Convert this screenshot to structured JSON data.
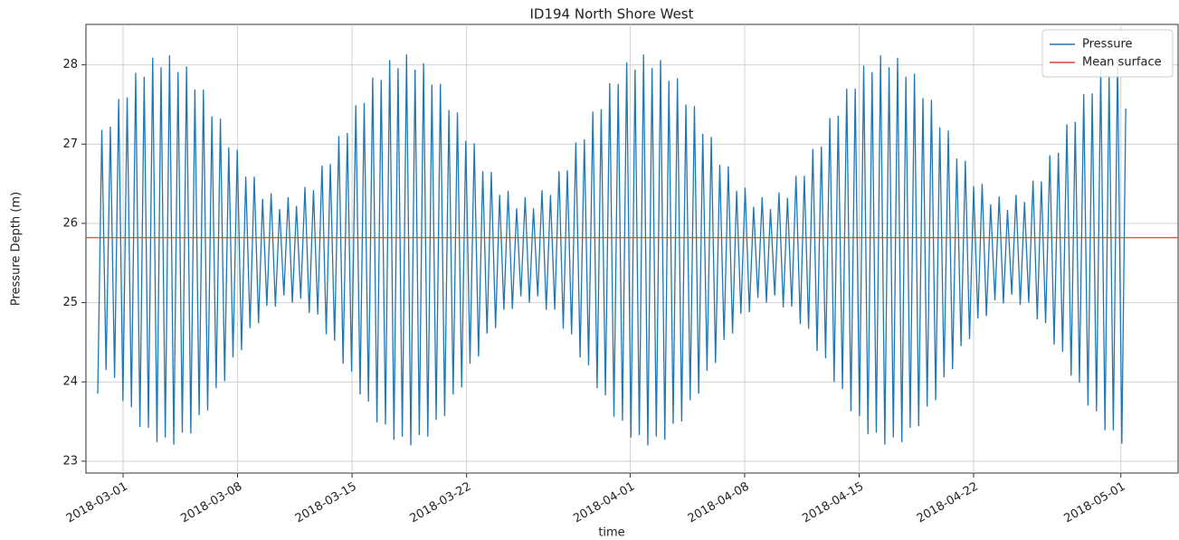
{
  "chart_data": {
    "type": "line",
    "title": "ID194 North Shore West",
    "xlabel": "time",
    "ylabel": "Pressure Depth (m)",
    "xlim": [
      -2.27,
      64.5
    ],
    "ylim": [
      22.85,
      28.51
    ],
    "xticks": [
      {
        "value": 0,
        "label": "2018-03-01"
      },
      {
        "value": 7,
        "label": "2018-03-08"
      },
      {
        "value": 14,
        "label": "2018-03-15"
      },
      {
        "value": 21,
        "label": "2018-03-22"
      },
      {
        "value": 31,
        "label": "2018-04-01"
      },
      {
        "value": 38,
        "label": "2018-04-08"
      },
      {
        "value": 45,
        "label": "2018-04-15"
      },
      {
        "value": 52,
        "label": "2018-04-22"
      },
      {
        "value": 61,
        "label": "2018-05-01"
      }
    ],
    "yticks": [
      23,
      24,
      25,
      26,
      27,
      28
    ],
    "grid": true,
    "legend": "upper right",
    "x": [
      -1.55,
      -1.3,
      -1.04,
      -0.78,
      -0.52,
      -0.27,
      -0.01,
      0.25,
      0.51,
      0.77,
      1.03,
      1.29,
      1.55,
      1.81,
      2.07,
      2.32,
      2.58,
      2.84,
      3.1,
      3.36,
      3.62,
      3.88,
      4.14,
      4.39,
      4.65,
      4.91,
      5.17,
      5.43,
      5.69,
      5.95,
      6.21,
      6.46,
      6.72,
      6.98,
      7.24,
      7.5,
      7.76,
      8.02,
      8.28,
      8.53,
      8.79,
      9.05,
      9.31,
      9.57,
      9.83,
      10.09,
      10.35,
      10.6,
      10.86,
      11.12,
      11.38,
      11.64,
      11.9,
      12.16,
      12.42,
      12.67,
      12.93,
      13.19,
      13.45,
      13.71,
      13.97,
      14.23,
      14.49,
      14.74,
      15.0,
      15.26,
      15.52,
      15.78,
      16.04,
      16.3,
      16.56,
      16.81,
      17.07,
      17.33,
      17.59,
      17.85,
      18.11,
      18.37,
      18.63,
      18.88,
      19.14,
      19.4,
      19.66,
      19.92,
      20.18,
      20.44,
      20.7,
      20.95,
      21.21,
      21.47,
      21.73,
      21.99,
      22.25,
      22.51,
      22.77,
      23.02,
      23.28,
      23.54,
      23.8,
      24.06,
      24.32,
      24.58,
      24.84,
      25.09,
      25.35,
      25.61,
      25.87,
      26.13,
      26.39,
      26.65,
      26.91,
      27.16,
      27.42,
      27.68,
      27.94,
      28.2,
      28.46,
      28.72,
      28.98,
      29.23,
      29.49,
      29.75,
      30.01,
      30.27,
      30.53,
      30.79,
      31.05,
      31.3,
      31.56,
      31.82,
      32.08,
      32.34,
      32.6,
      32.86,
      33.12,
      33.37,
      33.63,
      33.89,
      34.15,
      34.41,
      34.67,
      34.93,
      35.19,
      35.44,
      35.7,
      35.96,
      36.22,
      36.48,
      36.74,
      37.0,
      37.26,
      37.51,
      37.77,
      38.03,
      38.29,
      38.55,
      38.81,
      39.07,
      39.33,
      39.58,
      39.84,
      40.1,
      40.36,
      40.62,
      40.88,
      41.14,
      41.4,
      41.65,
      41.91,
      42.17,
      42.43,
      42.69,
      42.95,
      43.21,
      43.47,
      43.72,
      43.98,
      44.24,
      44.5,
      44.76,
      45.02,
      45.28,
      45.54,
      45.79,
      46.05,
      46.31,
      46.57,
      46.83,
      47.09,
      47.35,
      47.61,
      47.86,
      48.12,
      48.38,
      48.64,
      48.9,
      49.16,
      49.42,
      49.68,
      49.93,
      50.19,
      50.45,
      50.71,
      50.97,
      51.23,
      51.49,
      51.75,
      52.0,
      52.26,
      52.52,
      52.78,
      53.04,
      53.3,
      53.56,
      53.82,
      54.07,
      54.33,
      54.59,
      54.85,
      55.11,
      55.37,
      55.63,
      55.89,
      56.14,
      56.4,
      56.66,
      56.92,
      57.18,
      57.44,
      57.7,
      57.96,
      58.21,
      58.47,
      58.73,
      58.99,
      59.25,
      59.51,
      59.77,
      60.03,
      60.28,
      60.54,
      60.8,
      61.06,
      61.3
    ],
    "series": [
      {
        "name": "Pressure",
        "color": "#1f77b4",
        "values": [
          23.85,
          27.18,
          24.15,
          27.22,
          24.05,
          27.57,
          23.76,
          27.59,
          23.68,
          27.9,
          23.43,
          27.85,
          23.42,
          28.09,
          23.24,
          27.97,
          23.3,
          28.12,
          23.21,
          27.91,
          23.36,
          27.98,
          23.35,
          27.69,
          23.58,
          27.69,
          23.64,
          27.35,
          23.92,
          27.32,
          24.01,
          26.96,
          24.31,
          26.93,
          24.4,
          26.59,
          24.68,
          26.59,
          24.74,
          26.31,
          24.96,
          26.38,
          24.95,
          26.18,
          25.09,
          26.33,
          25.0,
          26.22,
          25.05,
          26.46,
          24.87,
          26.42,
          24.85,
          26.73,
          24.6,
          26.75,
          24.52,
          27.1,
          24.23,
          27.14,
          24.13,
          27.49,
          23.84,
          27.52,
          23.75,
          27.84,
          23.49,
          27.81,
          23.46,
          28.06,
          23.27,
          27.96,
          23.31,
          28.13,
          23.2,
          27.94,
          23.33,
          28.02,
          23.31,
          27.75,
          23.52,
          27.76,
          23.57,
          27.43,
          23.84,
          27.4,
          23.93,
          27.04,
          24.23,
          27.01,
          24.32,
          26.66,
          24.61,
          26.65,
          24.68,
          26.36,
          24.91,
          26.41,
          24.92,
          26.19,
          25.08,
          26.33,
          25.0,
          26.19,
          25.08,
          26.42,
          24.91,
          26.36,
          24.91,
          26.66,
          24.67,
          26.67,
          24.6,
          27.02,
          24.31,
          27.06,
          24.21,
          27.41,
          23.92,
          27.44,
          23.83,
          27.77,
          23.56,
          27.76,
          23.51,
          28.03,
          23.3,
          27.94,
          23.33,
          28.13,
          23.2,
          27.96,
          23.31,
          28.06,
          23.27,
          27.8,
          23.47,
          27.83,
          23.5,
          27.5,
          23.77,
          27.48,
          23.85,
          27.13,
          24.14,
          27.09,
          24.24,
          26.74,
          24.53,
          26.72,
          24.61,
          26.41,
          24.86,
          26.45,
          24.88,
          26.21,
          25.06,
          26.33,
          25.0,
          26.18,
          25.09,
          26.39,
          24.94,
          26.32,
          24.95,
          26.6,
          24.73,
          26.6,
          24.67,
          26.94,
          24.39,
          26.97,
          24.3,
          27.33,
          24.0,
          27.36,
          23.91,
          27.7,
          23.63,
          27.7,
          23.57,
          27.99,
          23.34,
          27.91,
          23.36,
          28.12,
          23.21,
          27.97,
          23.3,
          28.09,
          23.24,
          27.85,
          23.42,
          27.89,
          23.44,
          27.58,
          23.69,
          27.56,
          23.77,
          27.21,
          24.06,
          27.17,
          24.16,
          26.82,
          24.45,
          26.79,
          24.54,
          26.47,
          24.8,
          26.5,
          24.83,
          26.24,
          25.03,
          26.34,
          24.99,
          26.17,
          25.1,
          26.36,
          24.97,
          26.27,
          25.0,
          26.54,
          24.79,
          26.53,
          24.74,
          26.86,
          24.47,
          26.89,
          24.38,
          27.25,
          24.08,
          27.28,
          23.99,
          27.63,
          23.7,
          27.64,
          23.63,
          27.94,
          23.39,
          27.88,
          23.39,
          28.11,
          23.22,
          27.45
        ]
      }
    ],
    "hlines": [
      {
        "name": "Mean surface",
        "color": "#e8413c",
        "value": 25.82
      }
    ]
  }
}
